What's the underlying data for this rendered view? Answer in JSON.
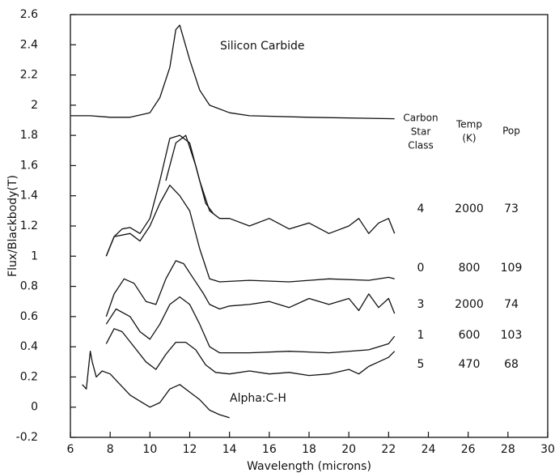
{
  "chart_data": {
    "type": "line",
    "xlabel": "Wavelength (microns)",
    "ylabel": "Flux/Blackbody(T)",
    "xlim": [
      6,
      30
    ],
    "ylim": [
      -0.2,
      2.6
    ],
    "xticks": [
      6,
      8,
      10,
      12,
      14,
      16,
      18,
      20,
      22,
      24,
      26,
      28,
      30
    ],
    "yticks": [
      -0.2,
      0,
      0.2,
      0.4,
      0.6,
      0.8,
      1,
      1.2,
      1.4,
      1.6,
      1.8,
      2,
      2.2,
      2.4,
      2.6
    ],
    "annotations": [
      "Silicon Carbide",
      "Alpha:C-H"
    ],
    "table": {
      "header": [
        [
          "Carbon",
          "Star",
          "Class"
        ],
        [
          "Temp",
          "(K)"
        ],
        [
          "Pop"
        ]
      ],
      "rows": [
        [
          4,
          2000,
          73
        ],
        [
          0,
          800,
          109
        ],
        [
          3,
          2000,
          74
        ],
        [
          1,
          600,
          103
        ],
        [
          5,
          470,
          68
        ]
      ]
    },
    "series": [
      {
        "color": "#111111",
        "x": [
          6,
          7,
          8,
          9,
          10,
          10.5,
          11,
          11.3,
          11.5,
          12,
          12.5,
          13,
          14,
          15,
          18,
          22.3
        ],
        "values": [
          1.93,
          1.93,
          1.92,
          1.92,
          1.95,
          2.05,
          2.25,
          2.5,
          2.53,
          2.3,
          2.1,
          2.0,
          1.95,
          1.93,
          1.92,
          1.91
        ]
      },
      {
        "color": "#111111",
        "x": [
          7.8,
          8.2,
          8.6,
          9,
          9.5,
          10,
          10.5,
          11,
          11.5,
          12,
          12.5,
          13,
          13.5,
          14,
          15,
          16,
          17,
          18,
          19,
          20,
          20.5,
          21,
          21.5,
          22,
          22.3
        ],
        "values": [
          1.0,
          1.13,
          1.18,
          1.19,
          1.15,
          1.25,
          1.5,
          1.78,
          1.8,
          1.75,
          1.5,
          1.3,
          1.25,
          1.25,
          1.2,
          1.25,
          1.18,
          1.22,
          1.15,
          1.2,
          1.25,
          1.15,
          1.22,
          1.25,
          1.15
        ]
      },
      {
        "color": "#111111",
        "x": [
          10.8,
          11.3,
          11.8,
          12.3,
          12.8,
          13.2
        ],
        "values": [
          1.5,
          1.75,
          1.8,
          1.6,
          1.35,
          1.28
        ]
      },
      {
        "color": "#111111",
        "x": [
          7.8,
          8.2,
          9,
          9.5,
          10,
          10.5,
          11,
          11.5,
          12,
          12.5,
          13,
          13.5,
          15,
          17,
          19,
          21,
          22,
          22.3
        ],
        "values": [
          1.0,
          1.13,
          1.15,
          1.1,
          1.2,
          1.35,
          1.47,
          1.4,
          1.3,
          1.05,
          0.85,
          0.83,
          0.84,
          0.83,
          0.85,
          0.84,
          0.86,
          0.85
        ]
      },
      {
        "color": "#111111",
        "x": [
          7.8,
          8.2,
          8.7,
          9.2,
          9.8,
          10.3,
          10.8,
          11.3,
          11.7,
          12.2,
          12.7,
          13,
          13.5,
          14,
          15,
          16,
          17,
          18,
          19,
          20,
          20.5,
          21,
          21.5,
          22,
          22.3
        ],
        "values": [
          0.6,
          0.75,
          0.85,
          0.82,
          0.7,
          0.68,
          0.85,
          0.97,
          0.95,
          0.85,
          0.75,
          0.68,
          0.65,
          0.67,
          0.68,
          0.7,
          0.66,
          0.72,
          0.68,
          0.72,
          0.64,
          0.75,
          0.66,
          0.72,
          0.62
        ]
      },
      {
        "color": "#111111",
        "x": [
          7.8,
          8.3,
          9,
          9.5,
          10,
          10.5,
          11,
          11.5,
          12,
          12.5,
          13,
          13.5,
          15,
          17,
          19,
          21,
          22,
          22.3
        ],
        "values": [
          0.55,
          0.65,
          0.6,
          0.5,
          0.45,
          0.55,
          0.68,
          0.73,
          0.68,
          0.55,
          0.4,
          0.36,
          0.36,
          0.37,
          0.36,
          0.38,
          0.42,
          0.47
        ]
      },
      {
        "color": "#111111",
        "x": [
          7.8,
          8.2,
          8.6,
          9.2,
          9.8,
          10.3,
          10.8,
          11.3,
          11.8,
          12.3,
          12.8,
          13.3,
          14,
          15,
          16,
          17,
          18,
          19,
          20,
          20.5,
          21,
          21.5,
          22,
          22.3
        ],
        "values": [
          0.42,
          0.52,
          0.5,
          0.4,
          0.3,
          0.25,
          0.35,
          0.43,
          0.43,
          0.38,
          0.28,
          0.23,
          0.22,
          0.24,
          0.22,
          0.23,
          0.21,
          0.22,
          0.25,
          0.22,
          0.27,
          0.3,
          0.33,
          0.37
        ]
      },
      {
        "color": "#111111",
        "x": [
          6.6,
          6.8,
          7,
          7.1,
          7.3,
          7.6,
          8,
          8.5,
          9,
          9.5,
          10,
          10.5,
          11,
          11.5,
          12,
          12.5,
          13,
          13.5,
          14
        ],
        "values": [
          0.15,
          0.12,
          0.37,
          0.3,
          0.2,
          0.24,
          0.22,
          0.15,
          0.08,
          0.04,
          0.0,
          0.03,
          0.12,
          0.15,
          0.1,
          0.05,
          -0.02,
          -0.05,
          -0.07
        ]
      }
    ]
  }
}
